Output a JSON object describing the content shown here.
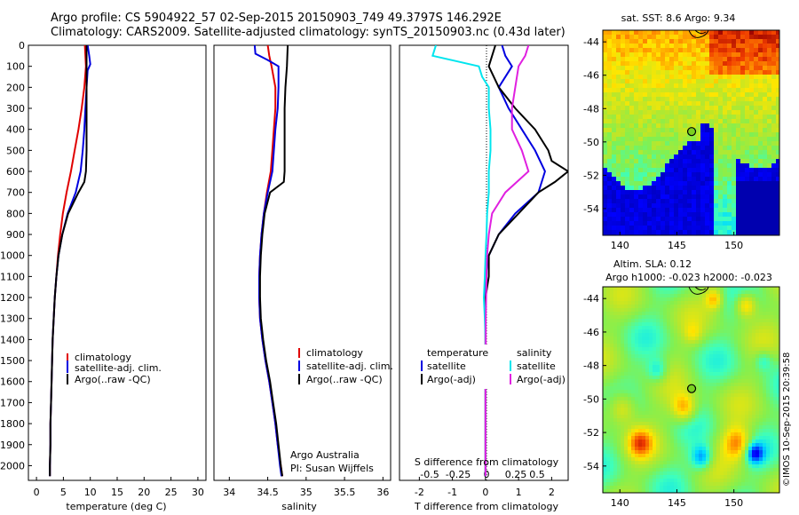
{
  "header": {
    "line1": "Argo profile: CS 5904922_57 02-Sep-2015 20150903_749 49.3797S 146.292E",
    "line2": "Climatology: CARS2009. Satellite-adjusted climatology: synTS_20150903.nc (0.43d later)"
  },
  "depth_axis": {
    "ticks": [
      "0",
      "100",
      "200",
      "300",
      "400",
      "500",
      "600",
      "700",
      "800",
      "900",
      "1000",
      "1100",
      "1200",
      "1300",
      "1400",
      "1500",
      "1600",
      "1700",
      "1800",
      "1900",
      "2000"
    ],
    "range": [
      0,
      2070
    ]
  },
  "panels": {
    "temperature": {
      "xlabel": "temperature (deg C)",
      "ticks": [
        "0",
        "5",
        "10",
        "15",
        "20",
        "25",
        "30"
      ],
      "legend": [
        "climatology",
        "satellite-adj. clim.",
        "Argo(..raw -QC)"
      ]
    },
    "salinity": {
      "xlabel": "salinity",
      "ticks": [
        "34",
        "34.5",
        "35",
        "35.5",
        "36"
      ],
      "legend": [
        "climatology",
        "satellite-adj. clim.",
        "Argo(..raw -QC)"
      ],
      "note1": "Argo Australia",
      "note2": "PI: Susan Wijffels"
    },
    "difference": {
      "xlabel": "T difference from climatology",
      "xlabel_top": "S difference from climatology",
      "ticks_t": [
        "-2",
        "-1",
        "0",
        "1",
        "2"
      ],
      "ticks_s": [
        "-0.5",
        "-0.25",
        "0",
        "0.25",
        "0.5"
      ],
      "legend_t_title": "temperature",
      "legend_s_title": "salinity",
      "legend_t": [
        "satellite",
        "Argo(-adj)"
      ],
      "legend_s": [
        "satellite",
        "Argo(-adj)"
      ]
    }
  },
  "maps": {
    "sst": {
      "title": "sat. SST: 8.6 Argo: 9.34",
      "yticks": [
        "-44",
        "-46",
        "-48",
        "-50",
        "-52",
        "-54"
      ],
      "xticks": [
        "140",
        "145",
        "150"
      ]
    },
    "sla": {
      "title1": "Altim. SLA: 0.12",
      "title2": "Argo h1000: -0.023 h2000: -0.023",
      "yticks": [
        "-44",
        "-46",
        "-48",
        "-50",
        "-52",
        "-54"
      ],
      "xticks": [
        "140",
        "145",
        "150"
      ]
    },
    "float_position": {
      "lon": 146.292,
      "lat": -49.3797
    }
  },
  "stamp": "©IMOS 10-Sep-2015 20:39:58",
  "colors": {
    "climatology": "#e00000",
    "satellite": "#0000e0",
    "argo": "#000000",
    "cyan": "#00e5ee",
    "magenta": "#e020e0"
  },
  "chart_data": [
    {
      "type": "line",
      "xlabel": "temperature (deg C)",
      "ylabel": "",
      "xlim": [
        -1.5,
        31.5
      ],
      "ylim": [
        2070,
        0
      ],
      "series": [
        {
          "name": "climatology",
          "color": "#e00000",
          "depth": [
            0,
            50,
            100,
            200,
            300,
            400,
            500,
            600,
            700,
            800,
            900,
            1000,
            1100,
            1200,
            1300,
            1400,
            1500,
            1600,
            1700,
            1800,
            1900,
            2000,
            2050
          ],
          "values": [
            9.0,
            9.1,
            9.2,
            8.9,
            8.4,
            7.8,
            7.1,
            6.4,
            5.6,
            4.9,
            4.4,
            4.0,
            3.7,
            3.4,
            3.2,
            3.0,
            2.9,
            2.8,
            2.7,
            2.6,
            2.6,
            2.5,
            2.5
          ]
        },
        {
          "name": "satellite-adj. clim.",
          "color": "#0000e0",
          "depth": [
            0,
            50,
            90,
            120,
            200,
            300,
            400,
            500,
            600,
            700,
            800,
            900,
            1000,
            1100,
            1200,
            1300,
            1400,
            1500,
            1600,
            1700,
            1800,
            1900,
            2000,
            2050
          ],
          "values": [
            9.5,
            9.8,
            10.0,
            9.5,
            9.3,
            9.1,
            8.9,
            8.6,
            8.2,
            7.3,
            5.8,
            4.8,
            4.1,
            3.7,
            3.4,
            3.2,
            3.0,
            2.9,
            2.8,
            2.7,
            2.6,
            2.6,
            2.5,
            2.5
          ]
        },
        {
          "name": "Argo(..raw -QC)",
          "color": "#000000",
          "depth": [
            0,
            50,
            100,
            150,
            200,
            300,
            400,
            500,
            600,
            650,
            700,
            800,
            900,
            1000,
            1100,
            1200,
            1300,
            1400,
            1500,
            1600,
            1700,
            1800,
            1900,
            2000,
            2050
          ],
          "values": [
            9.3,
            9.3,
            9.3,
            9.3,
            9.3,
            9.3,
            9.3,
            9.3,
            9.2,
            8.9,
            7.8,
            5.9,
            4.8,
            4.1,
            3.7,
            3.4,
            3.2,
            3.0,
            2.9,
            2.8,
            2.7,
            2.6,
            2.6,
            2.5,
            2.5
          ]
        }
      ]
    },
    {
      "type": "line",
      "xlabel": "salinity",
      "ylabel": "",
      "xlim": [
        33.8,
        36.1
      ],
      "ylim": [
        2070,
        0
      ],
      "series": [
        {
          "name": "climatology",
          "color": "#e00000",
          "depth": [
            0,
            50,
            100,
            200,
            300,
            400,
            500,
            600,
            700,
            800,
            900,
            1000,
            1100,
            1200,
            1300,
            1400,
            1500,
            1600,
            1700,
            1800,
            1900,
            2000,
            2050
          ],
          "values": [
            34.5,
            34.52,
            34.55,
            34.6,
            34.6,
            34.58,
            34.56,
            34.54,
            34.49,
            34.45,
            34.42,
            34.4,
            34.39,
            34.39,
            34.4,
            34.43,
            34.47,
            34.52,
            34.56,
            34.6,
            34.63,
            34.67,
            34.69
          ]
        },
        {
          "name": "satellite-adj. clim.",
          "color": "#0000e0",
          "depth": [
            0,
            40,
            70,
            100,
            200,
            300,
            400,
            500,
            600,
            700,
            800,
            900,
            1000,
            1100,
            1200,
            1300,
            1400,
            1500,
            1600,
            1700,
            1800,
            1900,
            2000,
            2050
          ],
          "values": [
            34.33,
            34.34,
            34.5,
            34.64,
            34.64,
            34.63,
            34.6,
            34.58,
            34.56,
            34.5,
            34.45,
            34.42,
            34.4,
            34.39,
            34.39,
            34.4,
            34.43,
            34.47,
            34.52,
            34.56,
            34.6,
            34.63,
            34.66,
            34.68
          ]
        },
        {
          "name": "Argo(..raw -QC)",
          "color": "#000000",
          "depth": [
            0,
            100,
            200,
            300,
            400,
            500,
            600,
            650,
            700,
            800,
            900,
            1000,
            1100,
            1200,
            1300,
            1400,
            1500,
            1600,
            1700,
            1800,
            1900,
            2000,
            2050
          ],
          "values": [
            34.76,
            34.75,
            34.73,
            34.72,
            34.72,
            34.72,
            34.72,
            34.71,
            34.53,
            34.46,
            34.43,
            34.41,
            34.4,
            34.4,
            34.41,
            34.44,
            34.48,
            34.53,
            34.57,
            34.61,
            34.64,
            34.67,
            34.69
          ]
        }
      ]
    },
    {
      "type": "line",
      "xlabel": "T difference from climatology",
      "ylabel": "",
      "xlim": [
        -2.6,
        2.5
      ],
      "ylim": [
        2070,
        0
      ],
      "series": [
        {
          "name": "temperature satellite",
          "color": "#0000e0",
          "depth": [
            0,
            50,
            100,
            200,
            300,
            400,
            500,
            600,
            700,
            800,
            900,
            1000,
            1100,
            1200,
            1300,
            1400,
            1500,
            1600,
            1700,
            1800,
            1900,
            2000,
            2050
          ],
          "values": [
            0.5,
            0.6,
            0.8,
            0.4,
            0.7,
            1.1,
            1.5,
            1.8,
            1.6,
            0.9,
            0.4,
            0.1,
            0.0,
            0.0,
            0.0,
            0.0,
            0.0,
            0.0,
            0.0,
            0.0,
            0.0,
            0.0,
            0.0
          ]
        },
        {
          "name": "temperature Argo(-adj)",
          "color": "#000000",
          "depth": [
            0,
            50,
            100,
            200,
            300,
            400,
            500,
            550,
            600,
            650,
            700,
            800,
            900,
            1000,
            1100,
            1200,
            1300,
            1400,
            1500,
            1600,
            1700,
            1800,
            1900,
            2000,
            2050
          ],
          "values": [
            0.3,
            0.2,
            0.1,
            0.4,
            0.9,
            1.5,
            1.9,
            2.0,
            2.5,
            2.1,
            1.6,
            1.0,
            0.4,
            0.1,
            0.1,
            0.0,
            0.0,
            0.0,
            0.0,
            0.0,
            0.0,
            0.0,
            0.0,
            0.0,
            0.0
          ]
        },
        {
          "name": "salinity satellite",
          "color": "#00e5ee",
          "depth": [
            0,
            50,
            100,
            150,
            200,
            300,
            400,
            500,
            600,
            700,
            800,
            900,
            1000,
            1100,
            1200,
            1300,
            1400,
            1500,
            1600,
            1700,
            1800,
            1900,
            2000,
            2050
          ],
          "values": [
            -1.5,
            -1.6,
            -0.2,
            -0.1,
            0.1,
            0.1,
            0.15,
            0.15,
            0.1,
            0.1,
            0.05,
            0.03,
            0.0,
            -0.02,
            -0.05,
            -0.02,
            0.0,
            0.0,
            0.0,
            0.0,
            0.0,
            0.0,
            0.0,
            0.0
          ]
        },
        {
          "name": "salinity Argo(-adj)",
          "color": "#e020e0",
          "depth": [
            0,
            50,
            100,
            200,
            300,
            400,
            500,
            600,
            700,
            800,
            900,
            1000,
            1100,
            1200,
            1300,
            1400,
            1500,
            1600,
            1700,
            1800,
            1900,
            2000,
            2050
          ],
          "values": [
            1.3,
            1.2,
            1.0,
            0.9,
            0.8,
            0.8,
            1.1,
            1.3,
            0.6,
            0.2,
            0.1,
            0.05,
            0.03,
            0.02,
            0.01,
            0.01,
            0.01,
            0.0,
            0.0,
            0.0,
            0.0,
            0.0,
            0.0
          ]
        }
      ]
    }
  ]
}
